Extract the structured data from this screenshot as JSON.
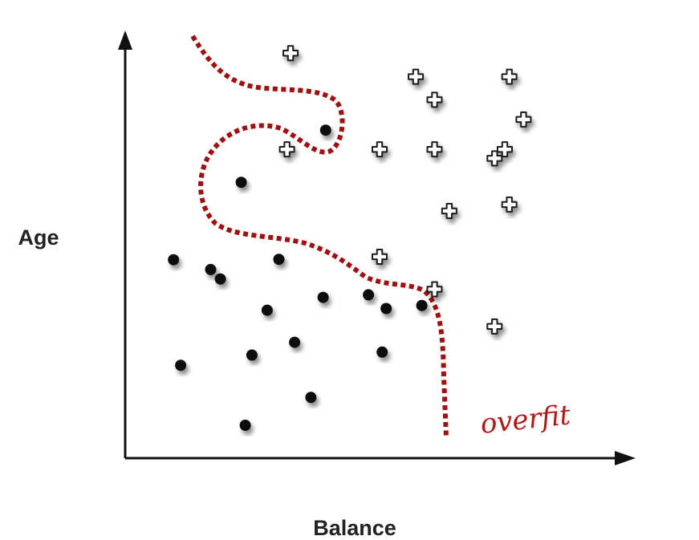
{
  "chart_data": {
    "type": "scatter",
    "title": "",
    "xlabel": "Balance",
    "ylabel": "Age",
    "xlim": [
      0,
      100
    ],
    "ylim": [
      0,
      100
    ],
    "grid": false,
    "series": [
      {
        "marker": "dot",
        "points": [
          [
            39.4,
            76.7
          ],
          [
            22.8,
            64.5
          ],
          [
            9.5,
            46.4
          ],
          [
            16.8,
            44.1
          ],
          [
            18.7,
            41.9
          ],
          [
            30.2,
            46.5
          ],
          [
            27.9,
            34.6
          ],
          [
            38.9,
            37.6
          ],
          [
            47.8,
            38.2
          ],
          [
            51.3,
            35.0
          ],
          [
            58.3,
            35.7
          ],
          [
            50.5,
            24.8
          ],
          [
            33.3,
            27.1
          ],
          [
            24.9,
            24.1
          ],
          [
            10.9,
            21.7
          ],
          [
            36.5,
            14.2
          ],
          [
            23.6,
            7.7
          ]
        ]
      },
      {
        "marker": "plus",
        "points": [
          [
            32.5,
            94.7
          ],
          [
            57.1,
            89.2
          ],
          [
            75.5,
            89.2
          ],
          [
            60.8,
            83.8
          ],
          [
            78.3,
            79.2
          ],
          [
            31.8,
            72.2
          ],
          [
            50.0,
            72.2
          ],
          [
            60.8,
            72.2
          ],
          [
            74.6,
            72.2
          ],
          [
            72.6,
            70.1
          ],
          [
            63.7,
            57.8
          ],
          [
            75.5,
            59.3
          ],
          [
            50.0,
            47.1
          ],
          [
            60.8,
            39.5
          ],
          [
            72.6,
            30.8
          ]
        ]
      }
    ],
    "annotations": [
      {
        "text": "overfit",
        "color": "#b01818"
      }
    ],
    "colors": {
      "dot": "#0a0a0a",
      "plus_stroke": "#1a1a1a",
      "boundary": "#a01010",
      "axis": "#111111"
    }
  }
}
